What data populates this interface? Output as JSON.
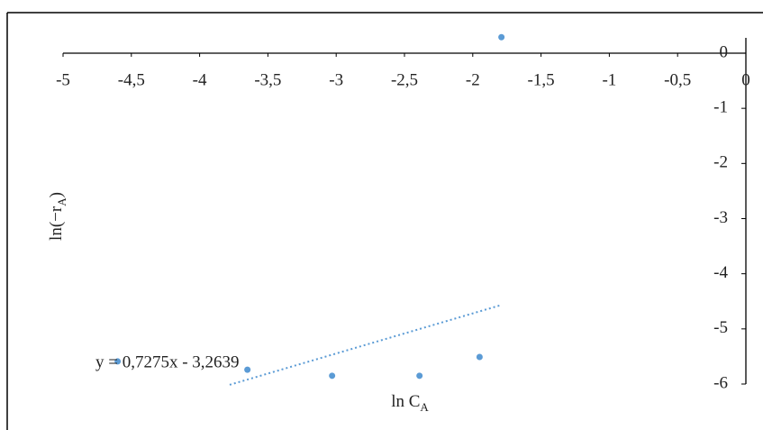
{
  "chart_data": {
    "type": "scatter",
    "x": [
      -1.79,
      -4.6,
      -3.65,
      -3.03,
      -2.39,
      -1.95
    ],
    "values": [
      0.29,
      -5.59,
      -5.74,
      -5.85,
      -5.85,
      -5.51
    ],
    "color": "#5b9bd5",
    "xlim": [
      -5,
      0
    ],
    "ylim": [
      -6,
      0
    ],
    "xticks": [
      -5,
      {
        "value": -4.5,
        "label": "-4,5"
      },
      -4,
      {
        "value": -3.5,
        "label": "-3,5"
      },
      -3,
      {
        "value": -2.5,
        "label": "-2,5"
      },
      -2,
      {
        "value": -1.5,
        "label": "-1,5"
      },
      -1,
      {
        "value": -0.5,
        "label": "-0,5"
      },
      0
    ],
    "yticks": [
      0,
      -1,
      -2,
      -3,
      -4,
      -5,
      -6
    ],
    "xlabel": [
      "ln C",
      "A"
    ],
    "ylabel": [
      "ln(−r",
      "A",
      ")"
    ],
    "trendline": {
      "label": "y = 0,7275x - 3,2639",
      "slope": 0.7275,
      "intercept": -3.2639,
      "x_range": [
        -3.78,
        -1.8
      ],
      "color": "#5b9bd5"
    },
    "grid": false
  }
}
